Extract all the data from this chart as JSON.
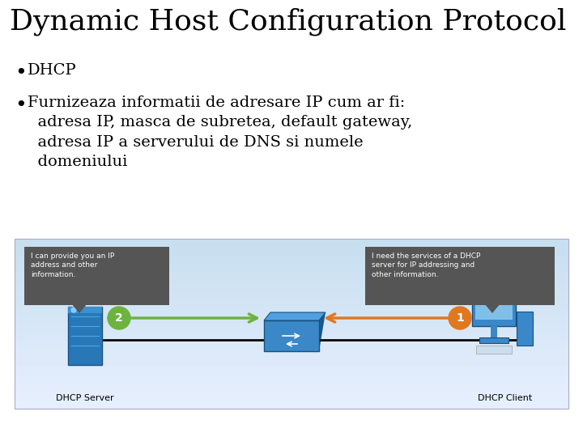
{
  "title": "Dynamic Host Configuration Protocol",
  "bullet1": "DHCP",
  "bullet2_line1": "Furnizeaza informatii de adresare IP cum ar fi:",
  "bullet2_line2": "adresa IP, masca de subretea, default gateway,",
  "bullet2_line3": "adresa IP a serverului de DNS si numele",
  "bullet2_line4": "domeniului",
  "bg_color": "#ffffff",
  "title_font_size": 26,
  "bullet_font_size": 14,
  "diagram_bg_top": "#c8dff0",
  "diagram_bg_bottom": "#ddeeff",
  "callout_bg": "#555555",
  "callout_text_color": "#ffffff",
  "callout_font_size": 6.5,
  "callout_left_text": "I can provide you an IP\naddress and other\ninformation.",
  "callout_right_text": "I need the services of a DHCP\nserver for IP addressing and\nother information.",
  "arrow_green": "#6db33f",
  "arrow_orange": "#e07820",
  "label_left": "DHCP Server",
  "label_right": "DHCP Client",
  "badge_green_text": "2",
  "badge_orange_text": "1",
  "server_color": "#2e7abf",
  "switch_color": "#4a9fd4",
  "pc_color": "#4a9fd4"
}
